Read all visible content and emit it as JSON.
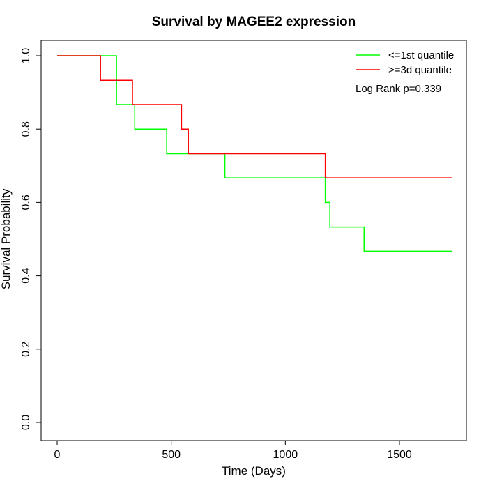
{
  "chart_data": {
    "type": "line",
    "title": "Survival by MAGEE2 expression",
    "xlabel": "Time (Days)",
    "ylabel": "Survival Probability",
    "xlim": [
      0,
      1730
    ],
    "ylim": [
      0,
      1
    ],
    "x_ticks": [
      "0",
      "500",
      "1000",
      "1500"
    ],
    "x_tick_values": [
      0,
      500,
      1000,
      1500
    ],
    "y_ticks": [
      "0.0",
      "0.2",
      "0.4",
      "0.6",
      "0.8",
      "1.0"
    ],
    "y_tick_values": [
      0,
      0.2,
      0.4,
      0.6,
      0.8,
      1.0
    ],
    "legend_position": "top-right",
    "annotation": "Log Rank p=0.339",
    "series": [
      {
        "name": "<=1st quantile",
        "color": "#00ff00",
        "step": true,
        "x": [
          0,
          260,
          340,
          480,
          735,
          1175,
          1195,
          1345,
          1730
        ],
        "y": [
          1.0,
          0.867,
          0.8,
          0.733,
          0.667,
          0.6,
          0.533,
          0.467,
          0.467
        ]
      },
      {
        "name": ">=3d quantile",
        "color": "#ff0000",
        "step": true,
        "x": [
          0,
          190,
          330,
          545,
          575,
          1175,
          1730
        ],
        "y": [
          1.0,
          0.933,
          0.867,
          0.8,
          0.733,
          0.667,
          0.667
        ]
      }
    ]
  }
}
